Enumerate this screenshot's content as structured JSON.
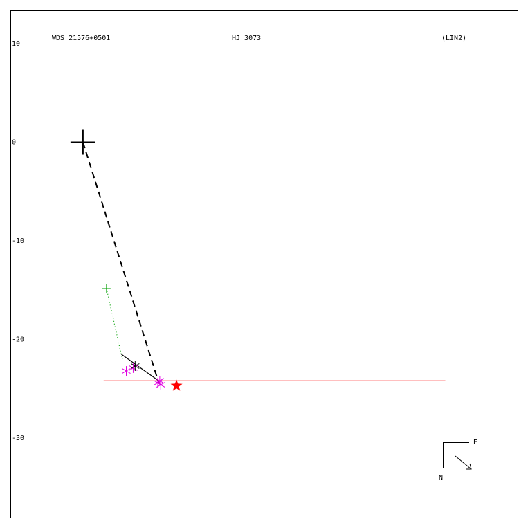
{
  "chart_data": {
    "type": "scatter",
    "title": "WDS 21576+0501",
    "subtitle": "HJ 3073",
    "annotation": "(LIN2)",
    "xlim": [
      -7.37,
      44.21
    ],
    "ylim": [
      -38.14,
      13.37
    ],
    "yticks": [
      10,
      0,
      -10,
      -20,
      -30
    ],
    "series": [
      {
        "marker": "cross",
        "color": "#000000",
        "x": [
          0
        ],
        "values": [
          0
        ]
      },
      {
        "marker": "plus",
        "color": "#00a000",
        "x": [
          2.39
        ],
        "values": [
          -14.84
        ]
      },
      {
        "marker": "asterisk",
        "color": "#e000e0",
        "x": [
          4.4,
          5.1,
          7.6,
          7.9,
          7.8
        ],
        "values": [
          -23.2,
          -22.9,
          -24.4,
          -24.6,
          -24.2
        ]
      },
      {
        "marker": "asterisk",
        "color": "#000000",
        "x": [
          5.3
        ],
        "values": [
          -22.7
        ]
      },
      {
        "marker": "star",
        "color": "#ff0000",
        "x": [
          9.5
        ],
        "values": [
          -24.7
        ]
      }
    ],
    "lines": [
      {
        "style": "dashed",
        "color": "#000000",
        "x": [
          0,
          7.7
        ],
        "values": [
          0,
          -24.4
        ]
      },
      {
        "style": "dotted",
        "color": "#00a000",
        "x": [
          2.39,
          4.0
        ],
        "values": [
          -14.84,
          -22.0
        ]
      },
      {
        "style": "solid",
        "color": "#000000",
        "x": [
          3.9,
          7.7
        ],
        "values": [
          -21.5,
          -24.2
        ]
      },
      {
        "style": "solid",
        "color": "#ff0000",
        "x": [
          2.1,
          36.8
        ],
        "values": [
          -24.2,
          -24.2
        ]
      }
    ],
    "compass": {
      "east": "E",
      "north": "N"
    }
  }
}
